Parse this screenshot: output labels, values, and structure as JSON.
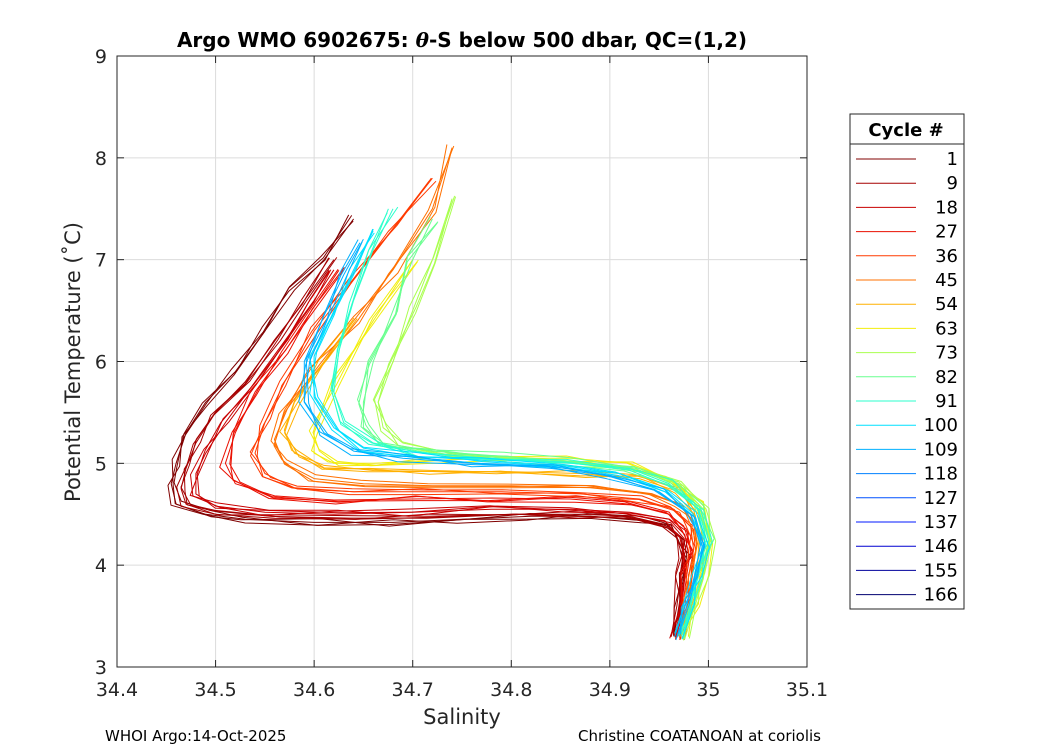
{
  "chart_data": {
    "type": "line",
    "title": "Argo WMO 6902675: θ-S below 500 dbar,  QC=(1,2)",
    "title_parts": {
      "prefix": "Argo WMO 6902675: ",
      "theta": "θ",
      "suffix": "-S below 500 dbar,  QC=(1,2)"
    },
    "xlabel": "Salinity",
    "ylabel": "Potential Temperature (˚C)",
    "xlim": [
      34.4,
      35.1
    ],
    "ylim": [
      3,
      9
    ],
    "xticks": [
      34.4,
      34.5,
      34.6,
      34.7,
      34.8,
      34.9,
      35,
      35.1
    ],
    "xtick_labels": [
      "34.4",
      "34.5",
      "34.6",
      "34.7",
      "34.8",
      "34.9",
      "35",
      "35.1"
    ],
    "yticks": [
      3,
      4,
      5,
      6,
      7,
      8,
      9
    ],
    "ytick_labels": [
      "3",
      "4",
      "5",
      "6",
      "7",
      "8",
      "9"
    ],
    "grid": true,
    "legend": {
      "title": "Cycle #",
      "position": "right",
      "entries": [
        {
          "label": "1",
          "color": "#800000"
        },
        {
          "label": "9",
          "color": "#a50000"
        },
        {
          "label": "18",
          "color": "#c80000"
        },
        {
          "label": "27",
          "color": "#ea0f00"
        },
        {
          "label": "36",
          "color": "#ff3a00"
        },
        {
          "label": "45",
          "color": "#ff7000"
        },
        {
          "label": "54",
          "color": "#ffb000"
        },
        {
          "label": "63",
          "color": "#f2ee0c"
        },
        {
          "label": "73",
          "color": "#a9ff4f"
        },
        {
          "label": "82",
          "color": "#69ff8f"
        },
        {
          "label": "91",
          "color": "#2bffcc"
        },
        {
          "label": "100",
          "color": "#00e0ff"
        },
        {
          "label": "109",
          "color": "#00b0ff"
        },
        {
          "label": "118",
          "color": "#0080ff"
        },
        {
          "label": "127",
          "color": "#0050ff"
        },
        {
          "label": "137",
          "color": "#0018ff"
        },
        {
          "label": "146",
          "color": "#0000d0"
        },
        {
          "label": "155",
          "color": "#00009c"
        },
        {
          "label": "166",
          "color": "#000070"
        }
      ]
    },
    "series": [
      {
        "name": "1",
        "color": "#800000",
        "salinity": [
          34.965,
          34.97,
          34.975,
          34.978,
          34.975,
          34.96,
          34.93,
          34.88,
          34.82,
          34.75,
          34.68,
          34.6,
          34.53,
          34.49,
          34.46,
          34.455,
          34.46,
          34.47,
          34.49,
          34.52,
          34.55,
          34.58,
          34.61,
          34.64
        ],
        "theta": [
          3.3,
          3.6,
          3.9,
          4.1,
          4.25,
          4.38,
          4.45,
          4.48,
          4.48,
          4.45,
          4.42,
          4.42,
          4.45,
          4.5,
          4.6,
          4.8,
          5.0,
          5.3,
          5.6,
          5.9,
          6.3,
          6.7,
          7.0,
          7.4
        ]
      },
      {
        "name": "9",
        "color": "#a50000",
        "salinity": [
          34.962,
          34.968,
          34.972,
          34.975,
          34.972,
          34.955,
          34.92,
          34.87,
          34.8,
          34.72,
          34.64,
          34.56,
          34.5,
          34.47,
          34.465,
          34.47,
          34.48,
          34.5,
          34.53,
          34.56,
          34.59,
          34.62
        ],
        "theta": [
          3.3,
          3.6,
          3.9,
          4.1,
          4.28,
          4.4,
          4.48,
          4.5,
          4.5,
          4.47,
          4.45,
          4.46,
          4.5,
          4.6,
          4.75,
          4.95,
          5.2,
          5.5,
          5.8,
          6.2,
          6.6,
          7.0
        ]
      },
      {
        "name": "18",
        "color": "#c80000",
        "salinity": [
          34.966,
          34.972,
          34.976,
          34.98,
          34.976,
          34.96,
          34.92,
          34.86,
          34.78,
          34.7,
          34.62,
          34.55,
          34.5,
          34.48,
          34.48,
          34.49,
          34.51,
          34.54,
          34.57,
          34.6,
          34.62
        ],
        "theta": [
          3.3,
          3.6,
          3.9,
          4.1,
          4.3,
          4.45,
          4.52,
          4.55,
          4.55,
          4.52,
          4.5,
          4.52,
          4.58,
          4.7,
          4.9,
          5.1,
          5.4,
          5.8,
          6.2,
          6.6,
          6.9
        ]
      },
      {
        "name": "27",
        "color": "#ea0f00",
        "salinity": [
          34.968,
          34.974,
          34.978,
          34.982,
          34.978,
          34.96,
          34.92,
          34.86,
          34.78,
          34.7,
          34.62,
          34.56,
          34.52,
          34.51,
          34.52,
          34.54,
          34.57,
          34.6,
          34.63
        ],
        "theta": [
          3.3,
          3.6,
          3.9,
          4.15,
          4.35,
          4.5,
          4.6,
          4.65,
          4.66,
          4.65,
          4.64,
          4.68,
          4.8,
          5.0,
          5.3,
          5.7,
          6.1,
          6.5,
          6.9
        ]
      },
      {
        "name": "36",
        "color": "#ff3a00",
        "salinity": [
          34.97,
          34.976,
          34.98,
          34.985,
          34.982,
          34.965,
          34.93,
          34.87,
          34.79,
          34.71,
          34.64,
          34.58,
          34.55,
          34.54,
          34.55,
          34.57,
          34.6,
          34.64,
          34.68,
          34.72
        ],
        "theta": [
          3.3,
          3.6,
          3.9,
          4.15,
          4.38,
          4.55,
          4.65,
          4.7,
          4.72,
          4.72,
          4.72,
          4.76,
          4.9,
          5.1,
          5.4,
          5.8,
          6.3,
          6.8,
          7.3,
          7.8
        ]
      },
      {
        "name": "45",
        "color": "#ff7000",
        "salinity": [
          34.97,
          34.978,
          34.983,
          34.988,
          34.985,
          34.97,
          34.94,
          34.88,
          34.8,
          34.72,
          34.65,
          34.6,
          34.57,
          34.56,
          34.57,
          34.6,
          34.64,
          34.68,
          34.72,
          34.74
        ],
        "theta": [
          3.3,
          3.6,
          3.9,
          4.2,
          4.42,
          4.6,
          4.7,
          4.76,
          4.78,
          4.78,
          4.8,
          4.85,
          5.0,
          5.2,
          5.5,
          5.9,
          6.4,
          6.9,
          7.5,
          8.1
        ]
      },
      {
        "name": "54",
        "color": "#ffb000",
        "salinity": [
          34.972,
          34.98,
          34.988,
          34.995,
          34.99,
          34.97,
          34.93,
          34.87,
          34.79,
          34.72,
          34.66,
          34.61,
          34.58,
          34.57,
          34.58,
          34.61,
          34.64
        ],
        "theta": [
          3.3,
          3.6,
          3.9,
          4.2,
          4.5,
          4.72,
          4.85,
          4.9,
          4.92,
          4.92,
          4.93,
          4.98,
          5.1,
          5.3,
          5.6,
          6.0,
          6.4
        ]
      },
      {
        "name": "63",
        "color": "#f2ee0c",
        "salinity": [
          34.975,
          34.985,
          34.995,
          35.0,
          34.99,
          34.96,
          34.92,
          34.86,
          34.79,
          34.72,
          34.66,
          34.62,
          34.6,
          34.6,
          34.62,
          34.66,
          34.7
        ],
        "theta": [
          3.3,
          3.6,
          3.9,
          4.25,
          4.6,
          4.85,
          5.0,
          5.05,
          5.05,
          5.03,
          5.0,
          5.0,
          5.1,
          5.3,
          5.8,
          6.4,
          7.0
        ]
      },
      {
        "name": "73",
        "color": "#a9ff4f",
        "salinity": [
          34.975,
          34.985,
          34.995,
          35.002,
          34.995,
          34.97,
          34.93,
          34.87,
          34.8,
          34.74,
          34.69,
          34.67,
          34.665,
          34.68,
          34.7,
          34.72,
          34.74
        ],
        "theta": [
          3.3,
          3.6,
          3.9,
          4.25,
          4.55,
          4.8,
          4.95,
          5.0,
          5.05,
          5.1,
          5.2,
          5.35,
          5.6,
          6.0,
          6.5,
          7.0,
          7.6
        ]
      },
      {
        "name": "82",
        "color": "#69ff8f",
        "salinity": [
          34.974,
          34.984,
          34.993,
          35.0,
          34.99,
          34.96,
          34.92,
          34.86,
          34.79,
          34.72,
          34.67,
          34.65,
          34.65,
          34.66,
          34.68,
          34.7,
          34.72
        ],
        "theta": [
          3.3,
          3.6,
          3.9,
          4.25,
          4.55,
          4.8,
          4.95,
          5.02,
          5.07,
          5.12,
          5.2,
          5.35,
          5.6,
          6.0,
          6.5,
          7.0,
          7.4
        ]
      },
      {
        "name": "91",
        "color": "#2bffcc",
        "salinity": [
          34.972,
          34.982,
          34.99,
          34.998,
          34.99,
          34.96,
          34.92,
          34.86,
          34.78,
          34.71,
          34.66,
          34.63,
          34.62,
          34.625,
          34.64,
          34.66,
          34.68
        ],
        "theta": [
          3.3,
          3.6,
          3.9,
          4.25,
          4.55,
          4.8,
          4.95,
          5.0,
          5.05,
          5.1,
          5.2,
          5.4,
          5.7,
          6.1,
          6.6,
          7.1,
          7.5
        ]
      },
      {
        "name": "100",
        "color": "#00e0ff",
        "salinity": [
          34.97,
          34.98,
          34.988,
          34.995,
          34.985,
          34.955,
          34.91,
          34.85,
          34.77,
          34.7,
          34.65,
          34.62,
          34.6,
          34.6,
          34.62,
          34.64,
          34.66
        ],
        "theta": [
          3.3,
          3.6,
          3.9,
          4.2,
          4.5,
          4.75,
          4.9,
          4.98,
          5.03,
          5.07,
          5.15,
          5.35,
          5.65,
          6.05,
          6.5,
          6.9,
          7.3
        ]
      },
      {
        "name": "109",
        "color": "#00b0ff",
        "salinity": [
          34.968,
          34.978,
          34.986,
          34.992,
          34.982,
          34.95,
          34.9,
          34.84,
          34.76,
          34.69,
          34.64,
          34.61,
          34.59,
          34.59,
          34.61,
          34.63,
          34.65
        ],
        "theta": [
          3.3,
          3.6,
          3.9,
          4.2,
          4.5,
          4.72,
          4.88,
          4.95,
          5.0,
          5.05,
          5.12,
          5.3,
          5.6,
          6.0,
          6.45,
          6.85,
          7.2
        ]
      }
    ]
  },
  "footer": {
    "left": "WHOI Argo:14-Oct-2025",
    "right": "Christine COATANOAN at coriolis"
  }
}
